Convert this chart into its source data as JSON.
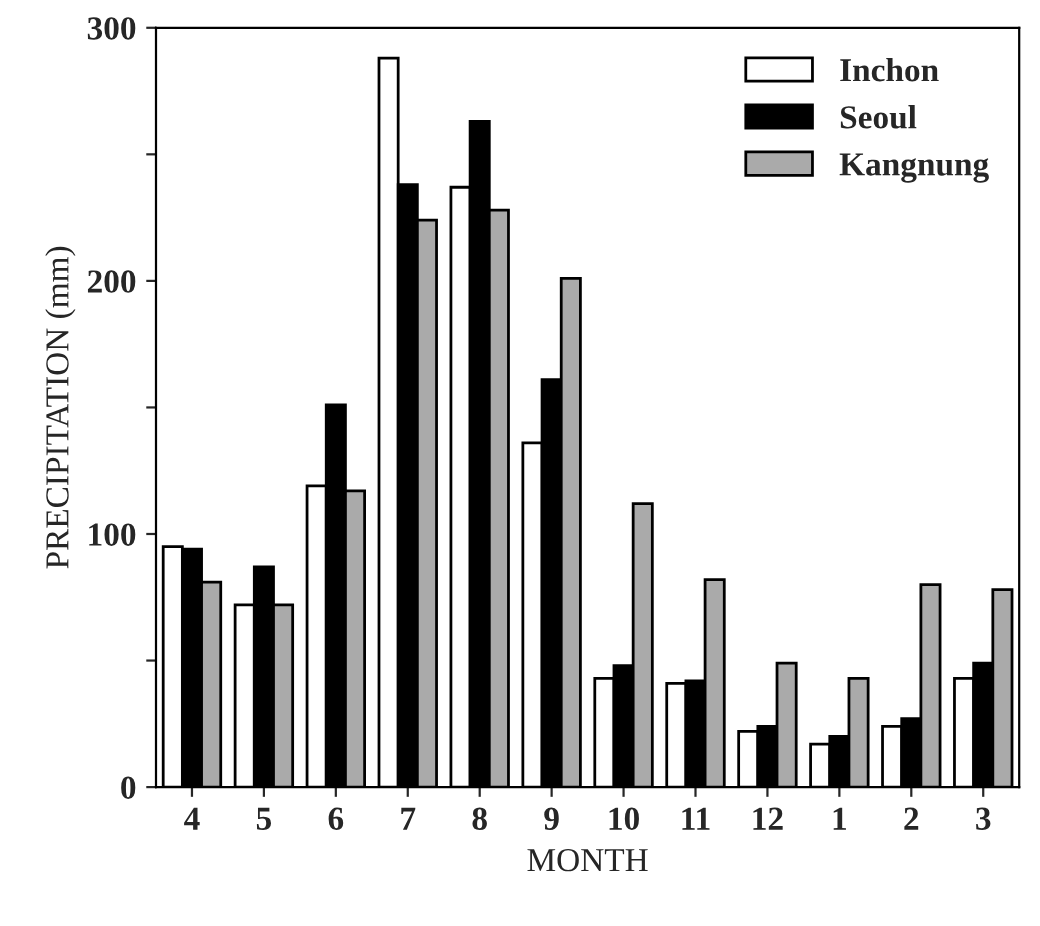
{
  "chart_data": {
    "type": "bar",
    "xlabel": "MONTH",
    "ylabel": "PRECIPITATION (mm)",
    "categories": [
      "4",
      "5",
      "6",
      "7",
      "8",
      "9",
      "10",
      "11",
      "12",
      "1",
      "2",
      "3"
    ],
    "series": [
      {
        "name": "Inchon",
        "color": "#ffffff",
        "values": [
          95,
          72,
          119,
          288,
          237,
          136,
          43,
          41,
          22,
          17,
          24,
          43
        ]
      },
      {
        "name": "Seoul",
        "color": "#000000",
        "values": [
          94,
          87,
          151,
          238,
          263,
          161,
          48,
          42,
          24,
          20,
          27,
          49
        ]
      },
      {
        "name": "Kangnung",
        "color": "#aaaaaa",
        "values": [
          81,
          72,
          117,
          224,
          228,
          201,
          112,
          82,
          49,
          43,
          80,
          78
        ]
      }
    ],
    "ylim": [
      0,
      300
    ],
    "yticks": [
      0,
      {
        "value": 50,
        "label": null
      },
      100,
      {
        "value": 150,
        "label": null
      },
      200,
      {
        "value": 250,
        "label": null
      },
      300
    ],
    "legend": "top right",
    "grid": false
  }
}
